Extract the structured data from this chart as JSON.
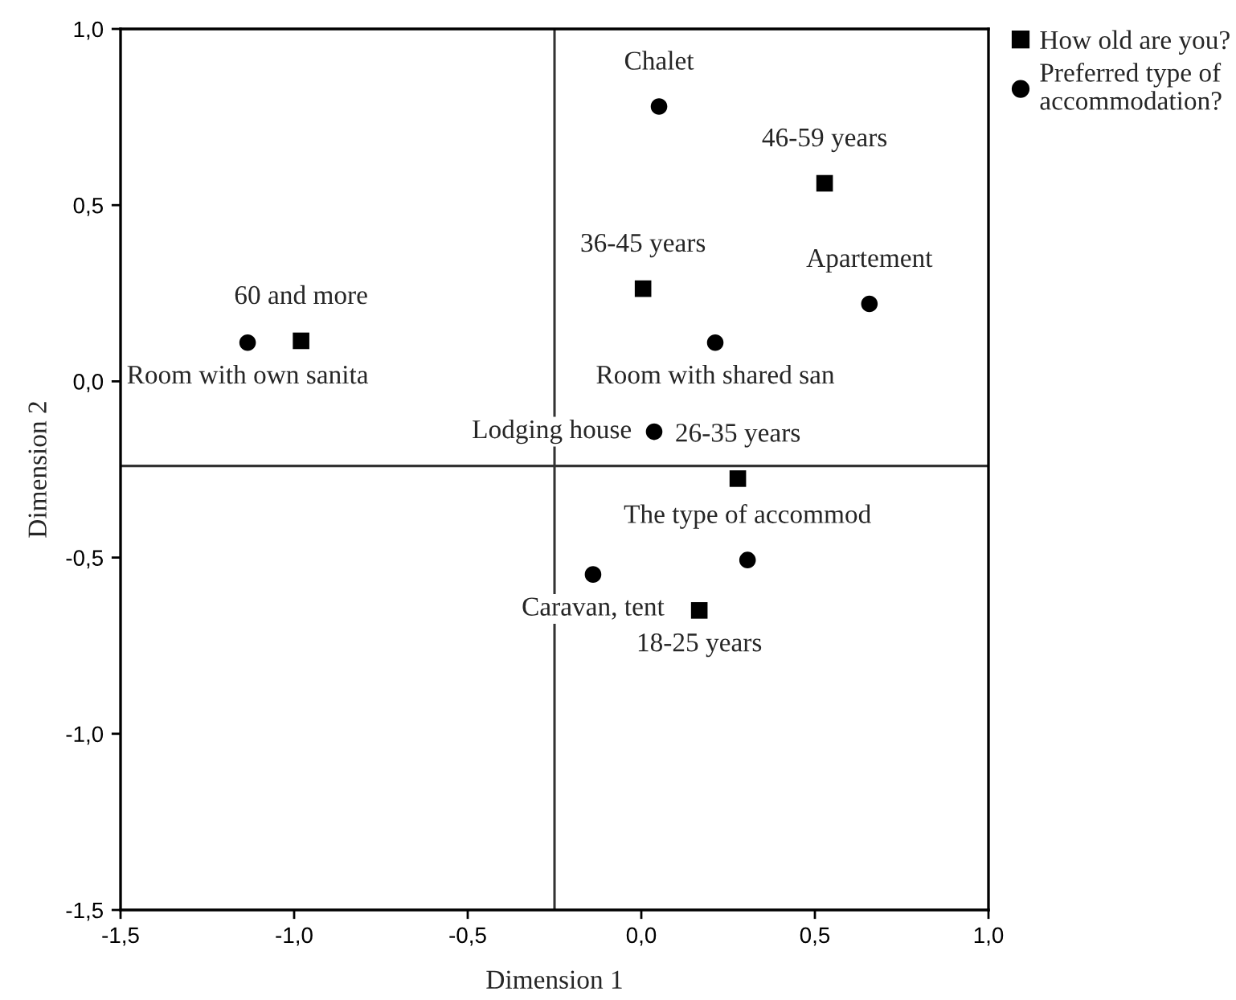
{
  "chart_data": {
    "type": "scatter",
    "xlabel": "Dimension 1",
    "ylabel": "Dimension 2",
    "xlim": [
      -1.5,
      1.0
    ],
    "ylim": [
      -1.5,
      1.0
    ],
    "xticks": [
      {
        "value": -1.5,
        "label": "-1,5"
      },
      {
        "value": -1.0,
        "label": "-1,0"
      },
      {
        "value": -0.5,
        "label": "-0,5"
      },
      {
        "value": 0.0,
        "label": "0,0"
      },
      {
        "value": 0.5,
        "label": "0,5"
      },
      {
        "value": 1.0,
        "label": "1,0"
      }
    ],
    "yticks": [
      {
        "value": -1.5,
        "label": "-1,5"
      },
      {
        "value": -1.0,
        "label": "-1,0"
      },
      {
        "value": -0.5,
        "label": "-0,5"
      },
      {
        "value": 0.0,
        "label": "0,0"
      },
      {
        "value": 0.5,
        "label": "0,5"
      },
      {
        "value": 1.0,
        "label": "1,0"
      }
    ],
    "series": [
      {
        "name": "How old are you?",
        "color": "#000000",
        "marker": "square",
        "x": [
          -0.98,
          0.005,
          0.528,
          0.278,
          0.167
        ],
        "values": [
          0.115,
          0.263,
          0.562,
          -0.276,
          -0.65
        ]
      },
      {
        "name": "Preferred type of accommodation?",
        "color": "#000000",
        "marker": "circle",
        "x": [
          0.051,
          0.657,
          0.213,
          -1.134,
          0.037,
          0.306,
          -0.139
        ],
        "values": [
          0.78,
          0.22,
          0.11,
          0.11,
          -0.143,
          -0.507,
          -0.548
        ]
      }
    ],
    "annotations": [
      {
        "text": "60 and more",
        "x": -0.98,
        "y": 0.115
      },
      {
        "text": "Room with own sanita",
        "x": -1.134,
        "y": 0.11
      },
      {
        "text": "36-45 years",
        "x": 0.005,
        "y": 0.263
      },
      {
        "text": "Room with shared san",
        "x": 0.213,
        "y": 0.11
      },
      {
        "text": "46-59 years",
        "x": 0.528,
        "y": 0.562
      },
      {
        "text": "Chalet",
        "x": 0.051,
        "y": 0.78
      },
      {
        "text": "Apartement",
        "x": 0.657,
        "y": 0.22
      },
      {
        "text": "Lodging house",
        "x": 0.037,
        "y": -0.143
      },
      {
        "text": "26-35 years",
        "x": 0.278,
        "y": -0.276
      },
      {
        "text": "The type of accommod",
        "x": 0.306,
        "y": -0.507
      },
      {
        "text": "18-25 years",
        "x": 0.167,
        "y": -0.65
      },
      {
        "text": "Caravan, tent",
        "x": -0.139,
        "y": -0.548
      }
    ],
    "ref_lines": [
      {
        "axis": "x",
        "value": -0.25
      },
      {
        "axis": "y",
        "value": -0.24
      }
    ],
    "grid": false,
    "legend": "top right"
  }
}
